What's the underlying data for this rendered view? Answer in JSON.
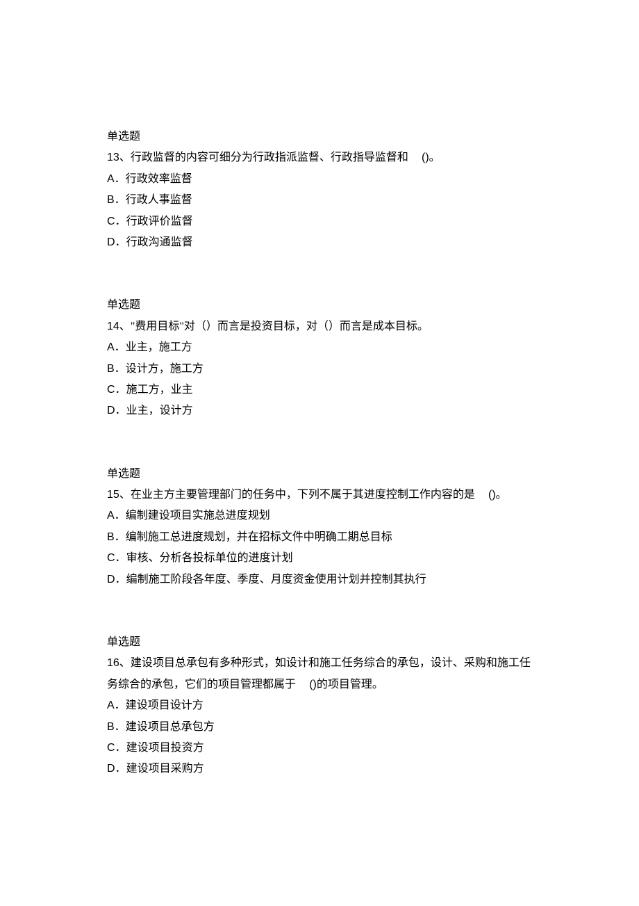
{
  "doc": {
    "font_size_pt": 12,
    "text_color": "#000000",
    "background_color": "#ffffff",
    "line_height": 1.9,
    "body_font": "SimSun",
    "latin_font": "Arial"
  },
  "questions": [
    {
      "section_label": "单选题",
      "number_prefix": "13、",
      "stem": "行政监督的内容可细分为行政指派监督、行政指导监督和",
      "blank_before_paren": true,
      "paren": "()",
      "stem_suffix": "。",
      "options": [
        {
          "letter": "A．",
          "text": "行政效率监督"
        },
        {
          "letter": "B．",
          "text": "行政人事监督"
        },
        {
          "letter": "C．",
          "text": "行政评价监督"
        },
        {
          "letter": "D．",
          "text": "行政沟通监督"
        }
      ]
    },
    {
      "section_label": "单选题",
      "number_prefix": "14、",
      "stem": "\"费用目标\"对（）而言是投资目标，对（）而言是成本目标。",
      "blank_before_paren": false,
      "paren": "",
      "stem_suffix": "",
      "options": [
        {
          "letter": "A．",
          "text": "业主，施工方"
        },
        {
          "letter": "B．",
          "text": "设计方，施工方"
        },
        {
          "letter": "C．",
          "text": "施工方，业主"
        },
        {
          "letter": "D．",
          "text": "业主，设计方"
        }
      ]
    },
    {
      "section_label": "单选题",
      "number_prefix": "15、",
      "stem": "在业主方主要管理部门的任务中，下列不属于其进度控制工作内容的是",
      "blank_before_paren": true,
      "paren": "()",
      "stem_suffix": "。",
      "options": [
        {
          "letter": "A．",
          "text": "编制建设项目实施总进度规划"
        },
        {
          "letter": "B．",
          "text": "编制施工总进度规划，并在招标文件中明确工期总目标"
        },
        {
          "letter": "C．",
          "text": "审核、分析各投标单位的进度计划"
        },
        {
          "letter": "D．",
          "text": "编制施工阶段各年度、季度、月度资金使用计划并控制其执行"
        }
      ]
    },
    {
      "section_label": "单选题",
      "number_prefix": "16、",
      "stem": "建设项目总承包有多种形式，如设计和施工任务综合的承包，设计、采购和施工任务综合的承包，它们的项目管理都属于",
      "blank_before_paren": true,
      "paren": "()",
      "stem_suffix": "的项目管理。",
      "options": [
        {
          "letter": "A．",
          "text": "建设项目设计方"
        },
        {
          "letter": "B．",
          "text": "建设项目总承包方"
        },
        {
          "letter": "C．",
          "text": "建设项目投资方"
        },
        {
          "letter": "D．",
          "text": "建设项目采购方"
        }
      ]
    }
  ]
}
